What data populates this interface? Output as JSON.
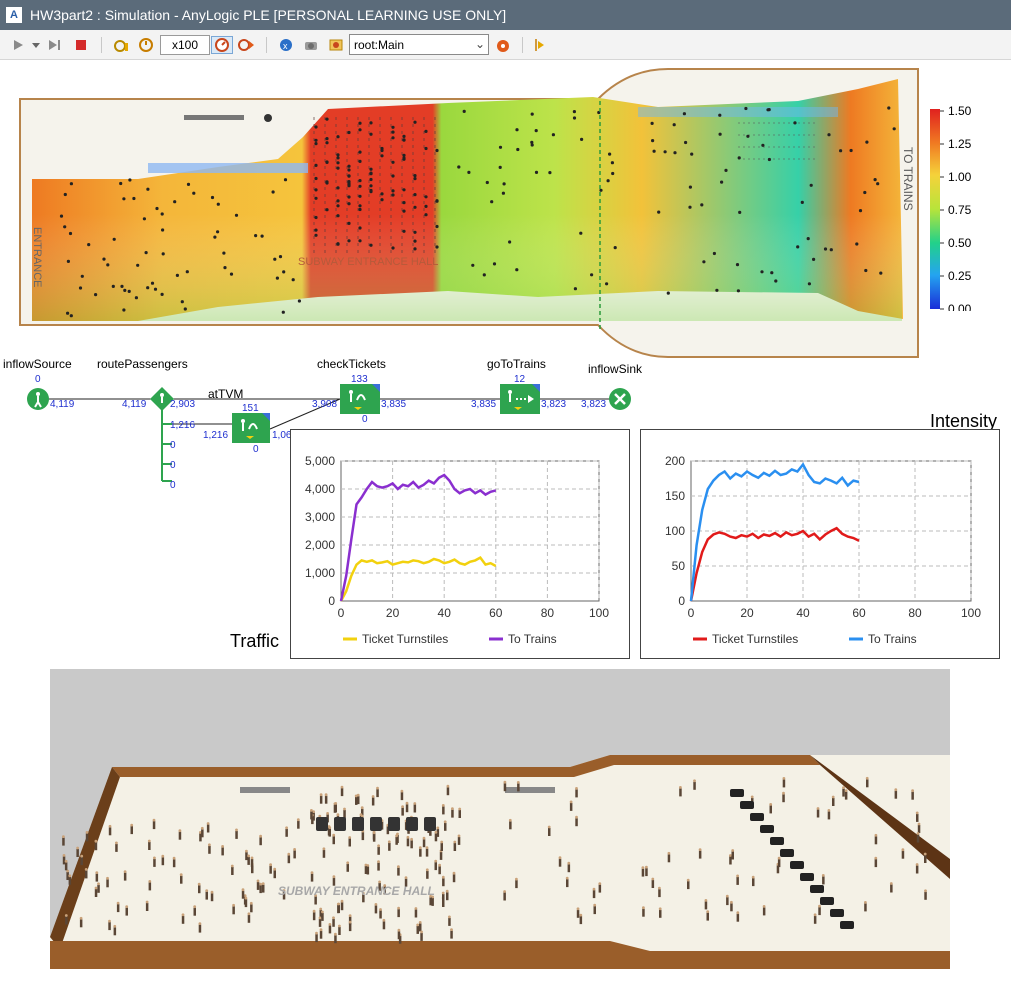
{
  "window": {
    "title": "HW3part2 : Simulation - AnyLogic PLE [PERSONAL LEARNING USE ONLY]"
  },
  "toolbar": {
    "speed": "x100",
    "root_select": "root:Main"
  },
  "colors": {
    "block_green": "#2ea44f",
    "block_blue": "#3a6fd8",
    "flow_number": "#1f2fcf",
    "series_ticket_traffic": "#f2d10e",
    "series_trains_traffic": "#8a2fcf",
    "series_ticket_intensity": "#e11a1a",
    "series_trains_intensity": "#2a8ff0",
    "wall_brown": "#8b5a2b"
  },
  "density_map": {
    "labels": {
      "entrance": "ENTRANCE",
      "hall": "SUBWAY ENTRANCE HALL",
      "trains": "TO TRAINS"
    },
    "scale": {
      "ticks": [
        "1.50",
        "1.25",
        "1.00",
        "0.75",
        "0.50",
        "0.25",
        "0.00"
      ]
    }
  },
  "flowchart": {
    "blocks": [
      {
        "id": "inflowSource",
        "name": "inflowSource",
        "icon": "person-source-icon",
        "top": "0",
        "left": "",
        "right": "4,119"
      },
      {
        "id": "routePassengers",
        "name": "routePassengers",
        "icon": "select-output-icon",
        "top": "",
        "left": "4,119",
        "right": "2,903"
      },
      {
        "id": "atTVM",
        "name": "atTVM",
        "icon": "service-icon",
        "top": "151",
        "left": "1,216",
        "right": "1,06",
        "bottom": "0"
      },
      {
        "id": "checkTickets",
        "name": "checkTickets",
        "icon": "service-icon",
        "top": "133",
        "left": "3,908",
        "right": "3,835",
        "bottom": "0"
      },
      {
        "id": "goToTrains",
        "name": "goToTrains",
        "icon": "go-to-icon",
        "top": "12",
        "left": "3,835",
        "right": "3,823"
      },
      {
        "id": "inflowSink",
        "name": "inflowSink",
        "icon": "sink-icon",
        "left": "3,823"
      }
    ],
    "route_branches": [
      "1,216",
      "0",
      "0",
      "0"
    ]
  },
  "charts": {
    "traffic": {
      "title": "Traffic"
    },
    "intensity": {
      "title": "Intensity"
    }
  },
  "chart_data": [
    {
      "type": "line",
      "title": "Traffic",
      "x": [
        0,
        2,
        4,
        6,
        8,
        10,
        12,
        14,
        16,
        18,
        20,
        22,
        24,
        26,
        28,
        30,
        32,
        34,
        36,
        38,
        40,
        42,
        44,
        46,
        48,
        50,
        52,
        54,
        56,
        58,
        60
      ],
      "xticks": [
        "0",
        "20",
        "40",
        "60",
        "80",
        "100"
      ],
      "yticks": [
        "0",
        "1,000",
        "2,000",
        "3,000",
        "4,000",
        "5,000"
      ],
      "xlim": [
        0,
        100
      ],
      "ylim": [
        0,
        5000
      ],
      "grid": true,
      "legend": "bottom",
      "series": [
        {
          "name": "Ticket Turnstiles",
          "values": [
            0,
            350,
            900,
            1300,
            1450,
            1400,
            1450,
            1350,
            1380,
            1420,
            1300,
            1350,
            1400,
            1380,
            1450,
            1420,
            1350,
            1400,
            1500,
            1450,
            1350,
            1400,
            1480,
            1350,
            1300,
            1400,
            1450,
            1550,
            1300,
            1350,
            1250
          ]
        },
        {
          "name": "To Trains",
          "values": [
            0,
            900,
            2200,
            3450,
            3700,
            4000,
            4250,
            4100,
            4050,
            4100,
            4200,
            4000,
            4150,
            4100,
            4250,
            4050,
            4150,
            4300,
            4200,
            4400,
            4500,
            4300,
            4000,
            3850,
            3950,
            4000,
            3850,
            3950,
            3800,
            3900,
            3950
          ]
        }
      ]
    },
    {
      "type": "line",
      "title": "Intensity",
      "x": [
        0,
        2,
        4,
        6,
        8,
        10,
        12,
        14,
        16,
        18,
        20,
        22,
        24,
        26,
        28,
        30,
        32,
        34,
        36,
        38,
        40,
        42,
        44,
        46,
        48,
        50,
        52,
        54,
        56,
        58,
        60
      ],
      "xticks": [
        "0",
        "20",
        "40",
        "60",
        "80",
        "100"
      ],
      "yticks": [
        "0",
        "50",
        "100",
        "150",
        "200"
      ],
      "xlim": [
        0,
        100
      ],
      "ylim": [
        0,
        200
      ],
      "grid": true,
      "legend": "bottom",
      "series": [
        {
          "name": "Ticket Turnstiles",
          "values": [
            0,
            40,
            70,
            88,
            95,
            98,
            96,
            92,
            90,
            94,
            92,
            96,
            90,
            95,
            93,
            97,
            92,
            98,
            94,
            96,
            100,
            92,
            96,
            88,
            95,
            100,
            104,
            96,
            92,
            90,
            86
          ]
        },
        {
          "name": "To Trains",
          "values": [
            0,
            80,
            130,
            160,
            172,
            180,
            185,
            175,
            182,
            178,
            185,
            180,
            176,
            183,
            179,
            186,
            180,
            182,
            188,
            185,
            195,
            180,
            170,
            168,
            175,
            172,
            168,
            176,
            165,
            172,
            170
          ]
        }
      ]
    }
  ],
  "view3d": {
    "hall_label": "SUBWAY ENTRANCE HALL"
  }
}
